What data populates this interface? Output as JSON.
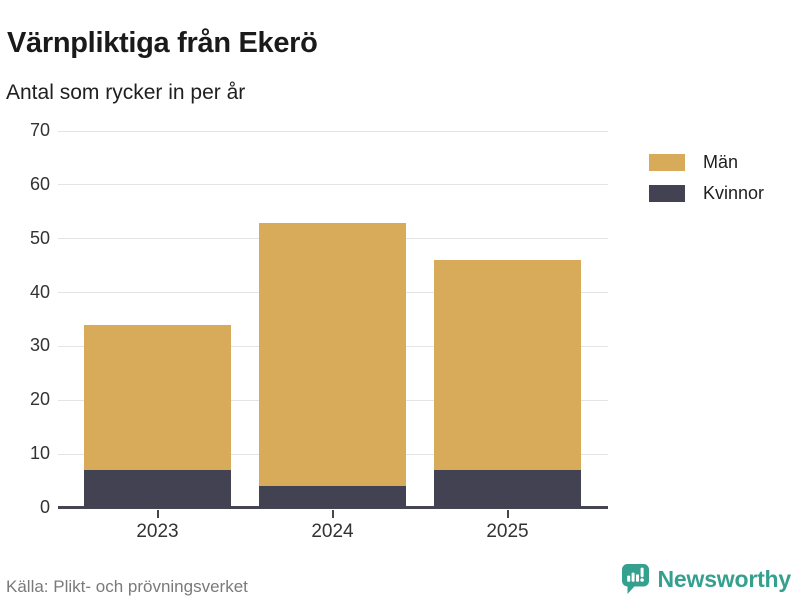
{
  "header": {
    "title": "Värnpliktiga från Ekerö",
    "subtitle": "Antal som rycker in per år"
  },
  "chart_data": {
    "type": "bar",
    "stacked": true,
    "title": "Värnpliktiga från Ekerö",
    "subtitle": "Antal som rycker in per år",
    "xlabel": "",
    "ylabel": "",
    "categories": [
      "2023",
      "2024",
      "2025"
    ],
    "series": [
      {
        "name": "Män",
        "color": "#d8ab5a",
        "values": [
          27,
          49,
          39
        ]
      },
      {
        "name": "Kvinnor",
        "color": "#424253",
        "values": [
          7,
          4,
          7
        ]
      }
    ],
    "stack_totals": [
      34,
      53,
      46
    ],
    "stack_order_bottom_to_top": [
      "Kvinnor",
      "Män"
    ],
    "ylim": [
      0,
      70
    ],
    "yticks": [
      0,
      10,
      20,
      30,
      40,
      50,
      60,
      70
    ],
    "grid": "horizontal",
    "legend_position": "right"
  },
  "footer": {
    "source": "Källa: Plikt- och prövningsverket",
    "brand": "Newsworthy"
  },
  "icons": {
    "brand_logo": "newsworthy-speech-bubble-bar-chart-icon"
  },
  "colors": {
    "men": "#d8ab5a",
    "women": "#424253",
    "gridline": "#e4e4e4",
    "axis": "#45454f",
    "axis_label": "#333333",
    "title": "#1a1a1a",
    "source_text": "#7a7a7a",
    "brand_teal": "#35a08e",
    "background": "#ffffff"
  }
}
